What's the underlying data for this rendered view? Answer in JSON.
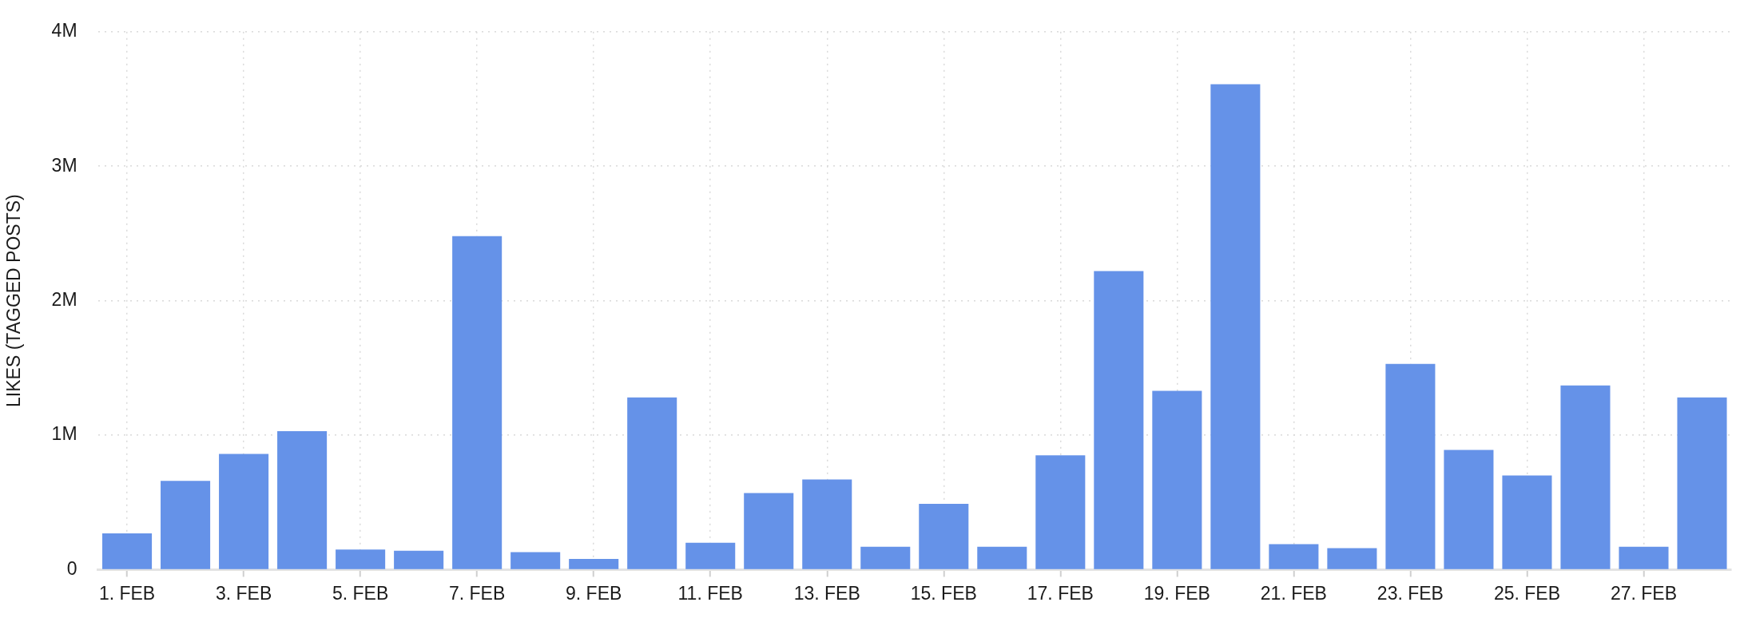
{
  "chart_data": {
    "type": "bar",
    "ylabel": "LIKES (TAGGED POSTS)",
    "categories": [
      "1. FEB",
      null,
      "3. FEB",
      null,
      "5. FEB",
      null,
      "7. FEB",
      null,
      "9. FEB",
      null,
      "11. FEB",
      null,
      "13. FEB",
      null,
      "15. FEB",
      null,
      "17. FEB",
      null,
      "19. FEB",
      null,
      "21. FEB",
      null,
      "23. FEB",
      null,
      "25. FEB",
      null,
      "27. FEB",
      null
    ],
    "values": [
      270000,
      660000,
      860000,
      1030000,
      150000,
      140000,
      2480000,
      130000,
      80000,
      1280000,
      200000,
      570000,
      670000,
      170000,
      490000,
      170000,
      850000,
      2220000,
      1330000,
      3610000,
      190000,
      160000,
      1530000,
      890000,
      700000,
      1370000,
      170000,
      1280000
    ],
    "color": "#6592e8",
    "ylim": [
      0,
      4000000
    ],
    "yticks": [
      {
        "value": 0,
        "label": "0"
      },
      {
        "value": 1000000,
        "label": "1M"
      },
      {
        "value": 2000000,
        "label": "2M"
      },
      {
        "value": 3000000,
        "label": "3M"
      },
      {
        "value": 4000000,
        "label": "4M"
      }
    ],
    "grid": true
  }
}
